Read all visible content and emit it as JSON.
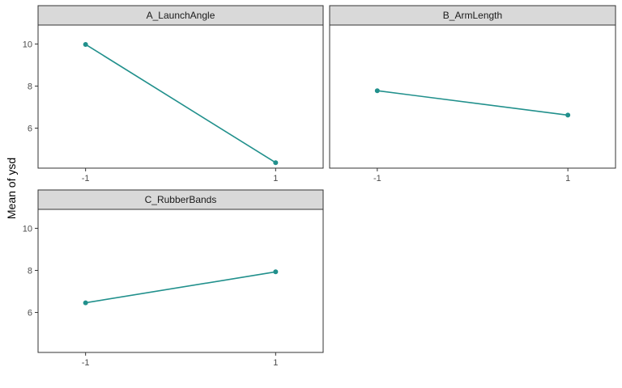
{
  "chart_data": {
    "type": "line",
    "ylabel": "Mean of ysd",
    "xlabel": "",
    "ylim": [
      4.1,
      10.9
    ],
    "xlim": [
      -1.5,
      1.5
    ],
    "yticks": [
      6,
      8,
      10
    ],
    "xticks": [
      "-1",
      "1"
    ],
    "grid": false,
    "color": "#21908C",
    "panels": [
      {
        "name": "A_LaunchAngle",
        "x": [
          -1,
          1
        ],
        "y": [
          9.98,
          4.36
        ]
      },
      {
        "name": "B_ArmLength",
        "x": [
          -1,
          1
        ],
        "y": [
          7.78,
          6.62
        ]
      },
      {
        "name": "C_RubberBands",
        "x": [
          -1,
          1
        ],
        "y": [
          6.46,
          7.93
        ]
      }
    ]
  }
}
